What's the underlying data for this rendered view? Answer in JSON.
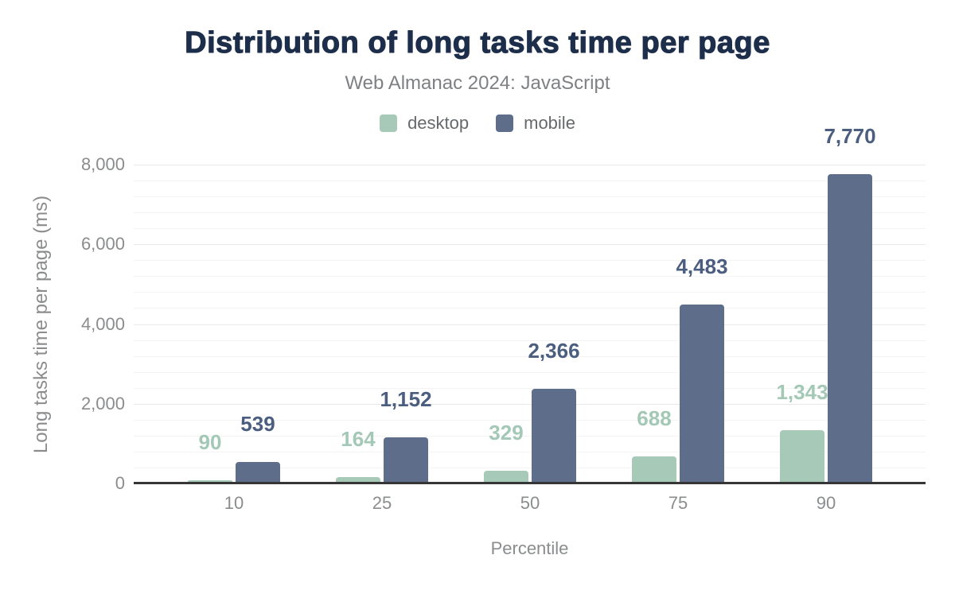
{
  "chart_data": {
    "type": "bar",
    "title": "Distribution of long tasks time per page",
    "subtitle": "Web Almanac 2024: JavaScript",
    "xlabel": "Percentile",
    "ylabel": "Long tasks time per page (ms)",
    "categories": [
      "10",
      "25",
      "50",
      "75",
      "90"
    ],
    "series": [
      {
        "name": "desktop",
        "color": "#a6c9b8",
        "label_color": "#a4c8b6",
        "values": [
          90,
          164,
          329,
          688,
          1343
        ],
        "value_labels": [
          "90",
          "164",
          "329",
          "688",
          "1,343"
        ]
      },
      {
        "name": "mobile",
        "color": "#5e6e8a",
        "label_color": "#4b5e80",
        "values": [
          539,
          1152,
          2366,
          4483,
          7770
        ],
        "value_labels": [
          "539",
          "1,152",
          "2,366",
          "4,483",
          "7,770"
        ]
      }
    ],
    "ylim": [
      0,
      8000
    ],
    "yticks": [
      {
        "value": 0,
        "label": "0"
      },
      {
        "value": 2000,
        "label": "2,000"
      },
      {
        "value": 4000,
        "label": "4,000"
      },
      {
        "value": 6000,
        "label": "6,000"
      },
      {
        "value": 8000,
        "label": "8,000"
      }
    ],
    "minor_grid_step": 400,
    "legend_position": "top",
    "grid": "on",
    "colors": {
      "title": "#1d2e4b",
      "subtitle": "#7e8083",
      "axis_line": "#363636",
      "tick_text": "#8a8c8e",
      "major_grid": "#e8e8e8",
      "minor_grid": "#f4f4f4"
    }
  }
}
